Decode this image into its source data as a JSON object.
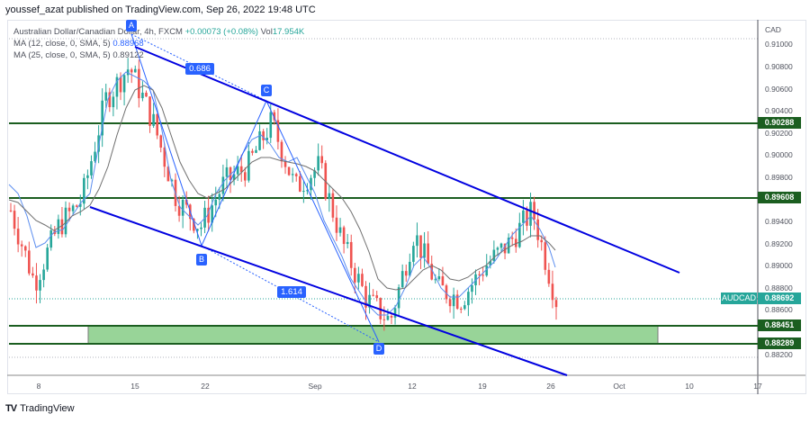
{
  "header": {
    "publisher_line": "youssef_azat published on TradingView.com, Sep 26, 2022 19:48 UTC"
  },
  "legend": {
    "symbol": "Australian Dollar/Canadian Dollar, 4h, FXCM",
    "change": "+0.00073 (+0.08%)",
    "volume_label": "Vol",
    "volume_value": "17.954K",
    "ma1_label": "MA (12, close, 0, SMA, 5)",
    "ma1_value": "0.88968",
    "ma2_label": "MA (25, close, 0, SMA, 5)",
    "ma2_value": "0.89122"
  },
  "price_axis": {
    "currency": "CAD",
    "ticks": [
      "0.91000",
      "0.90800",
      "0.90600",
      "0.90400",
      "0.90200",
      "0.90000",
      "0.89800",
      "0.89400",
      "0.89200",
      "0.89000",
      "0.88800",
      "0.88600",
      "0.88200"
    ]
  },
  "price_tags": {
    "level1": "0.90288",
    "level2": "0.89608",
    "current_symbol": "AUDCAD",
    "current": "0.88692",
    "level3": "0.88451",
    "level4": "0.88289"
  },
  "time_axis": {
    "ticks": [
      "8",
      "15",
      "22",
      "Sep",
      "12",
      "19",
      "26",
      "Oct",
      "10",
      "17"
    ]
  },
  "annotations": {
    "point_a": "A",
    "point_b": "B",
    "point_c": "C",
    "point_d": "D",
    "ratio_ac": "0.686",
    "ratio_bd": "1.614"
  },
  "footer": {
    "brand": "TradingView",
    "logo_glyph": "TV"
  },
  "colors": {
    "up": "#26a69a",
    "down": "#ef5350",
    "channel": "#0000e0",
    "level": "#1b5e20",
    "zone": "#98d498",
    "pattern": "#2962ff",
    "ma1": "#5b8def",
    "ma2": "#707070"
  },
  "chart_data": {
    "type": "candlestick",
    "title": "Australian Dollar/Canadian Dollar, 4h, FXCM",
    "symbol": "AUDCAD",
    "timeframe": "4h",
    "x_ticks": [
      "8",
      "15",
      "22",
      "Sep",
      "12",
      "19",
      "26",
      "Oct",
      "10",
      "17"
    ],
    "y_ticks": [
      0.91,
      0.908,
      0.906,
      0.904,
      0.902,
      0.9,
      0.898,
      0.894,
      0.892,
      0.89,
      0.888,
      0.886,
      0.882
    ],
    "ylim": [
      0.881,
      0.912
    ],
    "last_price": 0.88692,
    "horizontal_levels": [
      0.90288,
      0.89608,
      0.88451,
      0.88289
    ],
    "demand_zone": [
      0.88289,
      0.88451
    ],
    "moving_averages": [
      {
        "name": "MA 12 SMA",
        "last": 0.88968
      },
      {
        "name": "MA 25 SMA",
        "last": 0.89122
      }
    ],
    "pattern_points": [
      {
        "label": "A",
        "date": "Aug 14",
        "price": 0.91
      },
      {
        "label": "B",
        "date": "Aug 22",
        "price": 0.8923
      },
      {
        "label": "C",
        "date": "Aug 29",
        "price": 0.9048
      },
      {
        "label": "D",
        "date": "Sep 9",
        "price": 0.8828
      }
    ],
    "fib_ratios": [
      {
        "between": "A-C",
        "value": 0.686
      },
      {
        "between": "B-D",
        "value": 1.614
      }
    ],
    "approx_closes": [
      {
        "date": "Aug 3",
        "close": 0.895
      },
      {
        "date": "Aug 5",
        "close": 0.8885
      },
      {
        "date": "Aug 8",
        "close": 0.8935
      },
      {
        "date": "Aug 10",
        "close": 0.896
      },
      {
        "date": "Aug 12",
        "close": 0.905
      },
      {
        "date": "Aug 15",
        "close": 0.908
      },
      {
        "date": "Aug 17",
        "close": 0.903
      },
      {
        "date": "Aug 19",
        "close": 0.896
      },
      {
        "date": "Aug 22",
        "close": 0.8935
      },
      {
        "date": "Aug 24",
        "close": 0.8975
      },
      {
        "date": "Aug 26",
        "close": 0.899
      },
      {
        "date": "Aug 29",
        "close": 0.903
      },
      {
        "date": "Aug 31",
        "close": 0.897
      },
      {
        "date": "Sep 2",
        "close": 0.899
      },
      {
        "date": "Sep 5",
        "close": 0.892
      },
      {
        "date": "Sep 7",
        "close": 0.887
      },
      {
        "date": "Sep 9",
        "close": 0.885
      },
      {
        "date": "Sep 12",
        "close": 0.893
      },
      {
        "date": "Sep 14",
        "close": 0.888
      },
      {
        "date": "Sep 16",
        "close": 0.887
      },
      {
        "date": "Sep 19",
        "close": 0.89
      },
      {
        "date": "Sep 21",
        "close": 0.892
      },
      {
        "date": "Sep 23",
        "close": 0.895
      },
      {
        "date": "Sep 26",
        "close": 0.88692
      }
    ]
  }
}
